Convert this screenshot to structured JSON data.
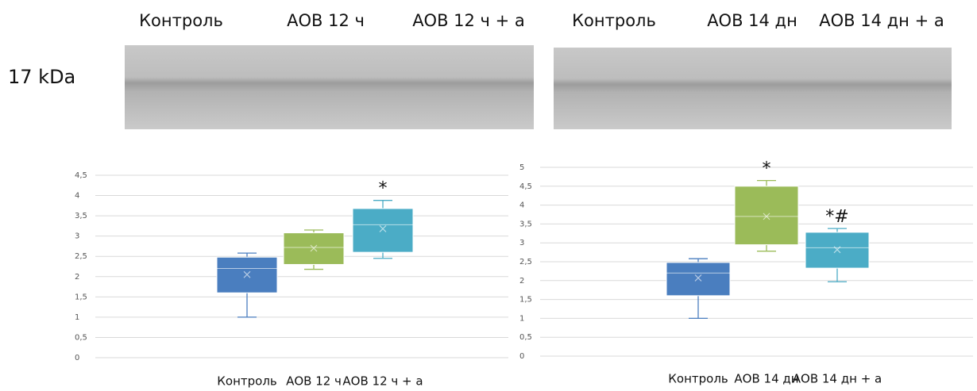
{
  "blot": {
    "marker": "17 kDa",
    "lanes": [
      [
        "Контроль",
        "АОВ 12 ч",
        "АОВ 12 ч + а"
      ],
      [
        "Контроль",
        "АОВ 14 дн",
        "АОВ 14 дн + а"
      ]
    ]
  },
  "chart_data": [
    {
      "type": "box",
      "categories": [
        "Контроль",
        "АОВ 12 ч",
        "АОВ 12 ч + а"
      ],
      "ylim": [
        0,
        4.5
      ],
      "yticks": [
        0,
        {
          "value": 0.5,
          "label": "0,5"
        },
        1,
        {
          "value": 1.5,
          "label": "1,5"
        },
        2,
        {
          "value": 2.5,
          "label": "2,5"
        },
        3,
        {
          "value": 3.5,
          "label": "3,5"
        },
        4,
        {
          "value": 4.5,
          "label": "4,5"
        }
      ],
      "grid": true,
      "boxes": [
        {
          "min": 1.0,
          "q1": 1.6,
          "median": 2.2,
          "q3": 2.48,
          "max": 2.58,
          "mean": 2.05,
          "color": "#4a7ebf"
        },
        {
          "min": 2.18,
          "q1": 2.3,
          "median": 2.72,
          "q3": 3.08,
          "max": 3.15,
          "mean": 2.7,
          "color": "#9bbb59"
        },
        {
          "min": 2.45,
          "q1": 2.6,
          "median": 3.28,
          "q3": 3.68,
          "max": 3.88,
          "mean": 3.18,
          "color": "#4bacc6",
          "annotation": "*"
        }
      ]
    },
    {
      "type": "box",
      "categories": [
        "Контроль",
        "АОВ 14 дн",
        "АОВ 14 дн + а"
      ],
      "ylim": [
        0,
        5
      ],
      "yticks": [
        0,
        {
          "value": 0.5,
          "label": "0,5"
        },
        1,
        {
          "value": 1.5,
          "label": "1,5"
        },
        2,
        {
          "value": 2.5,
          "label": "2,5"
        },
        3,
        {
          "value": 3.5,
          "label": "3,5"
        },
        4,
        {
          "value": 4.5,
          "label": "4,5"
        },
        5
      ],
      "grid": true,
      "boxes": [
        {
          "min": 1.0,
          "q1": 1.6,
          "median": 2.2,
          "q3": 2.48,
          "max": 2.58,
          "mean": 2.07,
          "color": "#4a7ebf"
        },
        {
          "min": 2.78,
          "q1": 2.95,
          "median": 3.7,
          "q3": 4.5,
          "max": 4.65,
          "mean": 3.7,
          "color": "#9bbb59",
          "annotation": "*"
        },
        {
          "min": 1.97,
          "q1": 2.33,
          "median": 2.87,
          "q3": 3.28,
          "max": 3.38,
          "mean": 2.82,
          "color": "#4bacc6",
          "annotation": "*#"
        }
      ]
    }
  ]
}
